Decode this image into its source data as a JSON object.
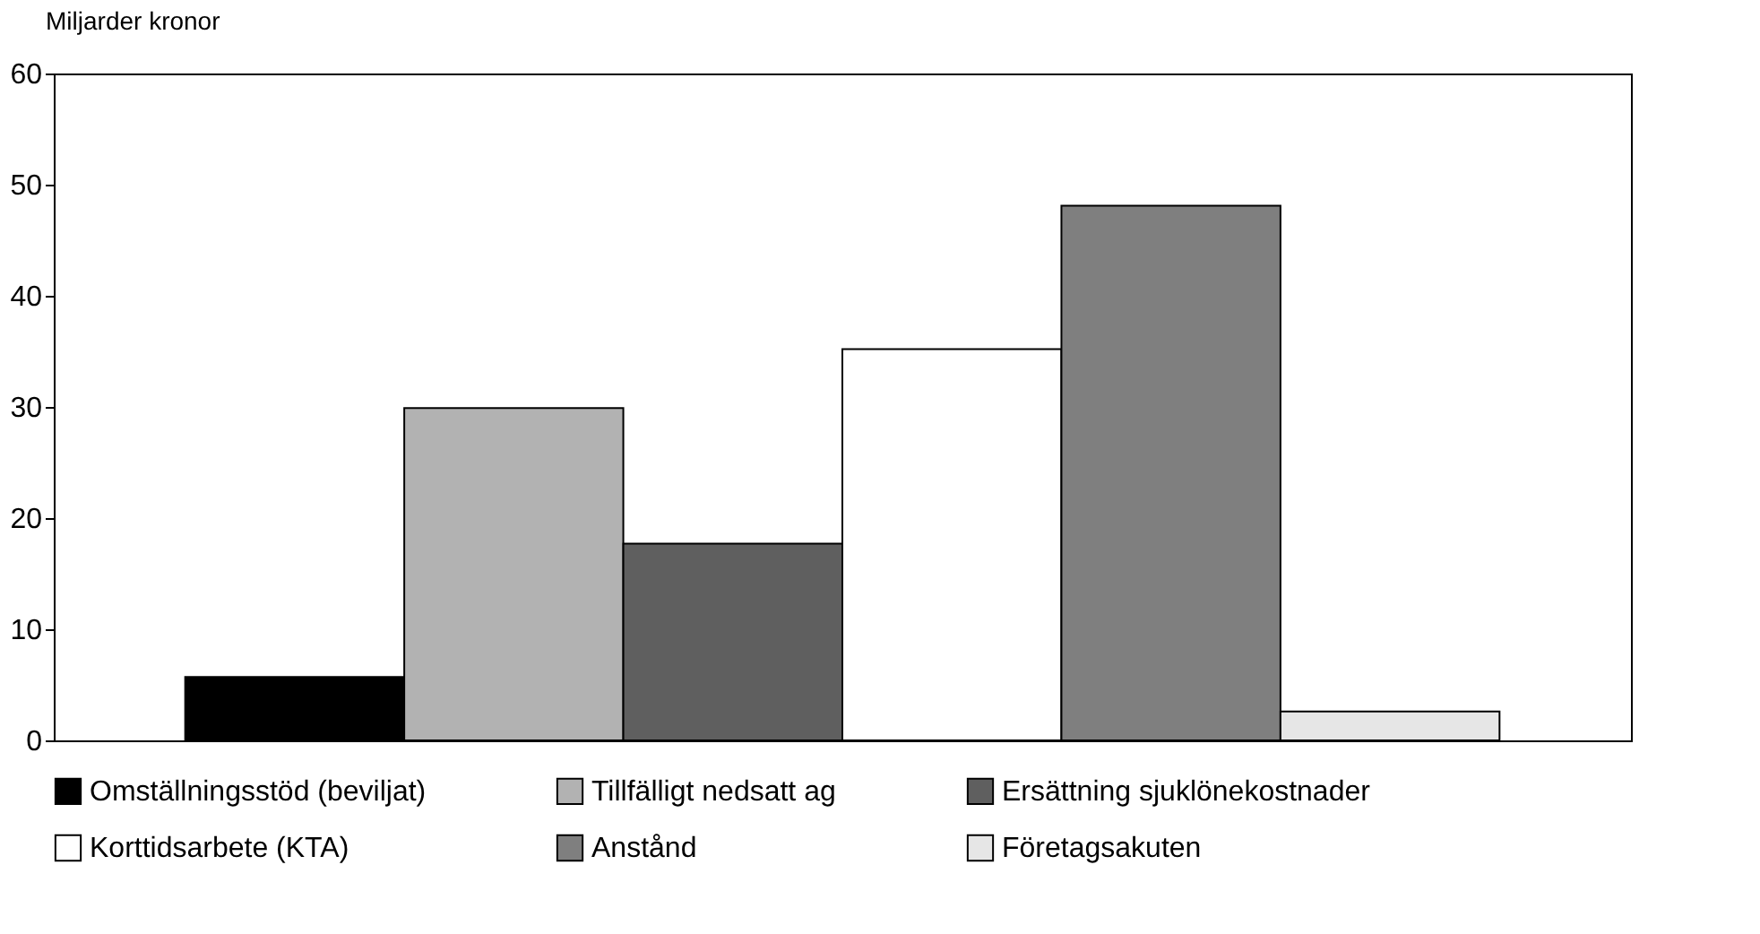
{
  "chart_data": {
    "type": "bar",
    "ylabel": "Miljarder kronor",
    "categories": [
      null
    ],
    "series": [
      {
        "name": "Omställningsstöd (beviljat)",
        "color": "#000000",
        "values": [
          5.7
        ]
      },
      {
        "name": "Tillfälligt nedsatt ag",
        "color": "#b2b2b2",
        "values": [
          29.9
        ]
      },
      {
        "name": "Ersättning sjuklönekostnader",
        "color": "#5f5f5f",
        "values": [
          17.7
        ]
      },
      {
        "name": "Korttidsarbete (KTA)",
        "color": "#ffffff",
        "values": [
          35.2
        ]
      },
      {
        "name": "Anstånd",
        "color": "#7f7f7f",
        "values": [
          48.1
        ]
      },
      {
        "name": "Företagsakuten",
        "color": "#e6e6e6",
        "values": [
          2.6
        ]
      }
    ],
    "ylim": [
      0,
      60
    ],
    "yticks": [
      0,
      10,
      20,
      30,
      40,
      50,
      60
    ],
    "grid": false,
    "legend": "bottom"
  }
}
